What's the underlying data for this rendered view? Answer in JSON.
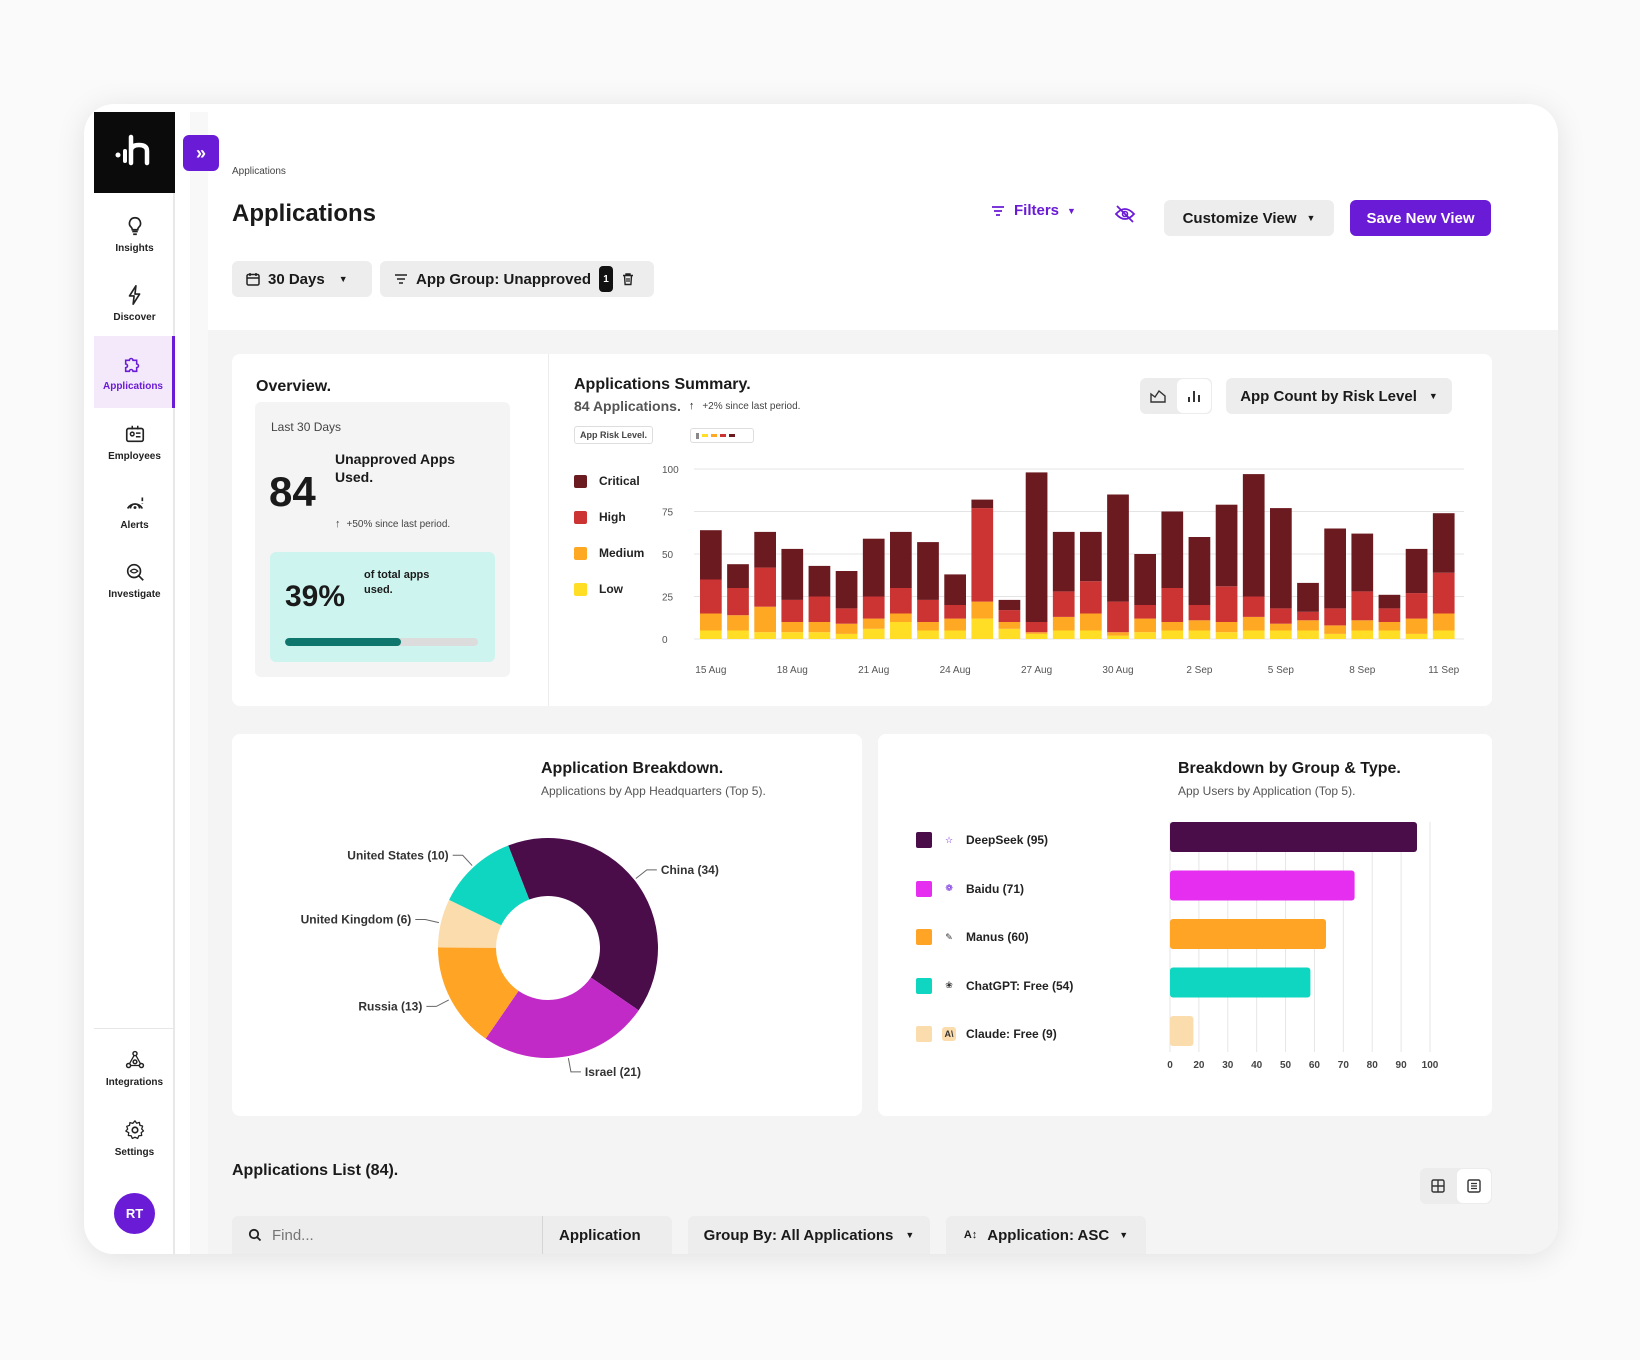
{
  "sidebar": {
    "items": [
      {
        "label": "Insights",
        "icon": "lightbulb-icon"
      },
      {
        "label": "Discover",
        "icon": "bolt-icon"
      },
      {
        "label": "Applications",
        "icon": "puzzle-icon",
        "active": true
      },
      {
        "label": "Employees",
        "icon": "id-card-icon"
      },
      {
        "label": "Alerts",
        "icon": "radar-icon"
      },
      {
        "label": "Investigate",
        "icon": "eye-search-icon"
      }
    ],
    "bottom": [
      {
        "label": "Integrations",
        "icon": "nodes-icon"
      },
      {
        "label": "Settings",
        "icon": "gear-icon"
      }
    ],
    "avatar": "RT"
  },
  "header": {
    "breadcrumb": "Applications",
    "title": "Applications",
    "filters_label": "Filters",
    "customize_label": "Customize View",
    "save_label": "Save New View"
  },
  "chips": {
    "range": "30 Days",
    "group": "App Group: Unapproved",
    "group_count": "1"
  },
  "overview": {
    "title": "Overview.",
    "period": "Last 30 Days",
    "value": "84",
    "value_label": "Unapproved Apps Used.",
    "change": "+50% since last period.",
    "percent": "39%",
    "percent_label": "of total apps used.",
    "progress": 0.6
  },
  "summary": {
    "title": "Applications Summary.",
    "count": "84 Applications.",
    "change": "+2% since last period.",
    "risk_label": "App Risk Level.",
    "metric": "App Count by Risk Level",
    "legend": [
      "Critical",
      "High",
      "Medium",
      "Low"
    ],
    "colors": {
      "Critical": "#6b1a1f",
      "High": "#cc3434",
      "Medium": "#ffa824",
      "Low": "#ffde25"
    }
  },
  "breakdown": {
    "title": "Application Breakdown.",
    "subtitle": "Applications by App Headquarters (Top 5)."
  },
  "group_type": {
    "title": "Breakdown by Group & Type.",
    "subtitle": "App Users by Application (Top 5).",
    "app_icons": [
      "☆",
      "❁",
      "✎",
      "❀",
      "A\\"
    ]
  },
  "list": {
    "title": "Applications List (84).",
    "search_placeholder": "Find...",
    "search_field": "Application",
    "group_by": "Group By: All Applications",
    "sort": "Application: ASC"
  },
  "chart_data": [
    {
      "type": "bar",
      "stacked": true,
      "title": "Applications Summary.",
      "ylim": [
        0,
        100
      ],
      "yticks": [
        0,
        25,
        50,
        75,
        100
      ],
      "xtick_labels": [
        "15 Aug",
        "18 Aug",
        "21 Aug",
        "24 Aug",
        "27 Aug",
        "30 Aug",
        "2 Sep",
        "5 Sep",
        "8 Sep",
        "11 Sep"
      ],
      "series": [
        {
          "name": "Low",
          "values": [
            5,
            5,
            4,
            4,
            4,
            3,
            6,
            10,
            5,
            5,
            12,
            6,
            3,
            5,
            5,
            2,
            4,
            5,
            5,
            4,
            5,
            5,
            5,
            3,
            5,
            5,
            3,
            5
          ]
        },
        {
          "name": "Medium",
          "values": [
            10,
            9,
            15,
            6,
            6,
            6,
            6,
            5,
            5,
            7,
            10,
            4,
            1,
            8,
            10,
            2,
            8,
            5,
            6,
            6,
            8,
            4,
            6,
            5,
            6,
            5,
            9,
            10
          ]
        },
        {
          "name": "High",
          "values": [
            20,
            16,
            23,
            13,
            15,
            9,
            13,
            15,
            13,
            8,
            55,
            7,
            6,
            15,
            19,
            18,
            8,
            20,
            9,
            21,
            12,
            9,
            5,
            10,
            17,
            8,
            15,
            24
          ]
        },
        {
          "name": "Critical",
          "values": [
            29,
            14,
            21,
            30,
            18,
            22,
            34,
            33,
            34,
            18,
            5,
            6,
            88,
            35,
            29,
            63,
            30,
            45,
            40,
            48,
            72,
            59,
            17,
            47,
            34,
            8,
            26,
            35
          ]
        }
      ]
    },
    {
      "type": "pie",
      "title": "Application Breakdown.",
      "categories": [
        "China",
        "Israel",
        "Russia",
        "United Kingdom",
        "United States"
      ],
      "values": [
        34,
        21,
        13,
        6,
        10
      ],
      "labels": [
        "China (34)",
        "Israel (21)",
        "Russia (13)",
        "United Kingdom (6)",
        "United States (10)"
      ],
      "colors": [
        "#4a0d4a",
        "#c22ac8",
        "#ffa424",
        "#fbdcac",
        "#0fd6c0"
      ]
    },
    {
      "type": "bar",
      "orientation": "horizontal",
      "title": "Breakdown by Group & Type.",
      "categories": [
        "DeepSeek",
        "Baidu",
        "Manus",
        "ChatGPT: Free",
        "Claude: Free"
      ],
      "values": [
        95,
        71,
        60,
        54,
        9
      ],
      "labels": [
        "DeepSeek (95)",
        "Baidu (71)",
        "Manus (60)",
        "ChatGPT: Free (54)",
        "Claude: Free (9)"
      ],
      "colors": [
        "#4a0d4a",
        "#e62ef0",
        "#ffa424",
        "#0fd6c0",
        "#fbdcac"
      ],
      "xtick_labels": [
        "0",
        "20",
        "30",
        "40",
        "50",
        "60",
        "70",
        "80",
        "90",
        "100"
      ]
    }
  ]
}
